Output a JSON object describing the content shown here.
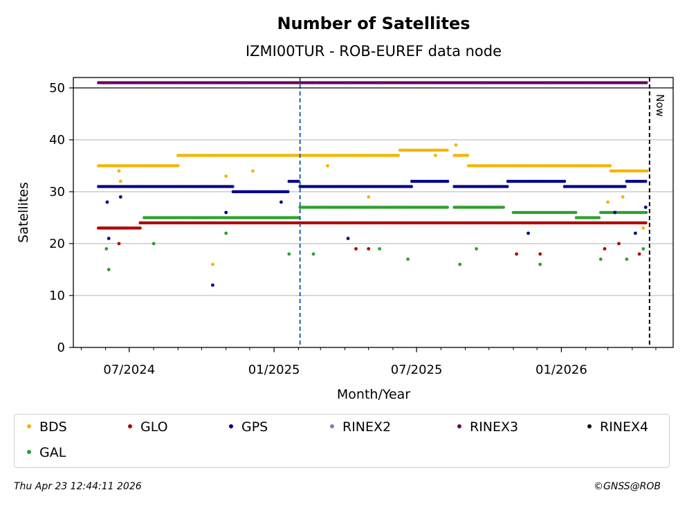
{
  "chart_data": {
    "type": "scatter",
    "title": "Number of Satellites",
    "subtitle": "IZMI00TUR - ROB-EUREF data node",
    "xlabel": "Month/Year",
    "ylabel": "Satellites",
    "ylim": [
      0,
      52
    ],
    "xlim": [
      "2024-04-21",
      "2026-05-23"
    ],
    "yticks": [
      0,
      10,
      20,
      30,
      40,
      50
    ],
    "xtick_labels": [
      {
        "date": "2024-07-01",
        "label": "07/2024"
      },
      {
        "date": "2025-01-01",
        "label": "01/2025"
      },
      {
        "date": "2025-07-01",
        "label": "07/2025"
      },
      {
        "date": "2026-01-01",
        "label": "01/2026"
      }
    ],
    "grid": "y",
    "vertical_lines": [
      {
        "date": "2025-02-03",
        "style": "dashed",
        "color": "#1f5fa8"
      },
      {
        "date": "2026-04-23",
        "style": "dashed",
        "color": "#000000",
        "label": "Now"
      }
    ],
    "segments": [
      {
        "series": "BDS",
        "start": "2024-05-23",
        "end": "2024-09-01",
        "value": 35
      },
      {
        "series": "BDS",
        "start": "2024-09-01",
        "end": "2025-02-03",
        "value": 37
      },
      {
        "series": "BDS",
        "start": "2025-02-03",
        "end": "2025-06-10",
        "value": 37
      },
      {
        "series": "BDS",
        "start": "2025-06-10",
        "end": "2025-08-10",
        "value": 38
      },
      {
        "series": "BDS",
        "start": "2025-08-18",
        "end": "2025-09-05",
        "value": 37
      },
      {
        "series": "BDS",
        "start": "2025-09-05",
        "end": "2026-03-05",
        "value": 35
      },
      {
        "series": "BDS",
        "start": "2026-03-05",
        "end": "2026-04-20",
        "value": 34
      },
      {
        "series": "GPS",
        "start": "2024-05-23",
        "end": "2024-11-10",
        "value": 31
      },
      {
        "series": "GPS",
        "start": "2024-11-10",
        "end": "2025-01-20",
        "value": 30
      },
      {
        "series": "GPS",
        "start": "2025-01-20",
        "end": "2025-02-03",
        "value": 32
      },
      {
        "series": "GPS",
        "start": "2025-02-03",
        "end": "2025-06-25",
        "value": 31
      },
      {
        "series": "GPS",
        "start": "2025-06-25",
        "end": "2025-08-10",
        "value": 32
      },
      {
        "series": "GPS",
        "start": "2025-08-18",
        "end": "2025-10-25",
        "value": 31
      },
      {
        "series": "GPS",
        "start": "2025-10-25",
        "end": "2026-01-05",
        "value": 32
      },
      {
        "series": "GPS",
        "start": "2026-01-05",
        "end": "2026-03-25",
        "value": 31
      },
      {
        "series": "GPS",
        "start": "2026-03-25",
        "end": "2026-04-20",
        "value": 32
      },
      {
        "series": "GAL",
        "start": "2024-05-23",
        "end": "2024-06-30",
        "value": 23
      },
      {
        "series": "GAL",
        "start": "2024-07-20",
        "end": "2025-02-03",
        "value": 25
      },
      {
        "series": "GAL",
        "start": "2025-02-03",
        "end": "2025-08-10",
        "value": 27
      },
      {
        "series": "GAL",
        "start": "2025-08-18",
        "end": "2025-10-20",
        "value": 27
      },
      {
        "series": "GAL",
        "start": "2025-11-01",
        "end": "2026-01-20",
        "value": 26
      },
      {
        "series": "GAL",
        "start": "2026-01-20",
        "end": "2026-02-20",
        "value": 25
      },
      {
        "series": "GAL",
        "start": "2026-02-20",
        "end": "2026-04-20",
        "value": 26
      },
      {
        "series": "GLO",
        "start": "2024-05-23",
        "end": "2024-07-15",
        "value": 23
      },
      {
        "series": "GLO",
        "start": "2024-07-15",
        "end": "2025-02-03",
        "value": 24
      },
      {
        "series": "GLO",
        "start": "2025-02-03",
        "end": "2026-04-20",
        "value": 24
      },
      {
        "series": "RINEX3",
        "start": "2024-05-23",
        "end": "2026-04-20",
        "value": 51
      }
    ],
    "series": [
      {
        "name": "BDS",
        "color": "#f5b400"
      },
      {
        "name": "GLO",
        "color": "#b30000"
      },
      {
        "name": "GPS",
        "color": "#00008b"
      },
      {
        "name": "RINEX2",
        "color": "#8878c0"
      },
      {
        "name": "RINEX3",
        "color": "#6a0064"
      },
      {
        "name": "RINEX4",
        "color": "#1a0014"
      },
      {
        "name": "GAL",
        "color": "#2ca02c"
      }
    ],
    "outliers": [
      {
        "series": "BDS",
        "date": "2024-10-15",
        "value": 16
      },
      {
        "series": "BDS",
        "date": "2024-06-18",
        "value": 34
      },
      {
        "series": "BDS",
        "date": "2024-06-20",
        "value": 32
      },
      {
        "series": "BDS",
        "date": "2024-11-01",
        "value": 33
      },
      {
        "series": "BDS",
        "date": "2024-12-05",
        "value": 34
      },
      {
        "series": "BDS",
        "date": "2025-03-10",
        "value": 35
      },
      {
        "series": "BDS",
        "date": "2025-05-01",
        "value": 29
      },
      {
        "series": "BDS",
        "date": "2025-08-20",
        "value": 39
      },
      {
        "series": "BDS",
        "date": "2025-07-25",
        "value": 37
      },
      {
        "series": "BDS",
        "date": "2026-03-01",
        "value": 28
      },
      {
        "series": "BDS",
        "date": "2026-03-20",
        "value": 29
      },
      {
        "series": "BDS",
        "date": "2026-04-15",
        "value": 23
      },
      {
        "series": "GPS",
        "date": "2024-10-15",
        "value": 12
      },
      {
        "series": "GPS",
        "date": "2024-06-03",
        "value": 28
      },
      {
        "series": "GPS",
        "date": "2024-06-05",
        "value": 21
      },
      {
        "series": "GPS",
        "date": "2024-06-20",
        "value": 29
      },
      {
        "series": "GPS",
        "date": "2024-11-01",
        "value": 26
      },
      {
        "series": "GPS",
        "date": "2025-01-10",
        "value": 28
      },
      {
        "series": "GPS",
        "date": "2025-04-05",
        "value": 21
      },
      {
        "series": "GPS",
        "date": "2025-11-20",
        "value": 22
      },
      {
        "series": "GPS",
        "date": "2026-03-10",
        "value": 26
      },
      {
        "series": "GPS",
        "date": "2026-04-05",
        "value": 22
      },
      {
        "series": "GPS",
        "date": "2026-04-18",
        "value": 27
      },
      {
        "series": "GAL",
        "date": "2024-06-05",
        "value": 15
      },
      {
        "series": "GAL",
        "date": "2024-06-02",
        "value": 19
      },
      {
        "series": "GAL",
        "date": "2024-08-01",
        "value": 20
      },
      {
        "series": "GAL",
        "date": "2024-11-01",
        "value": 22
      },
      {
        "series": "GAL",
        "date": "2025-01-20",
        "value": 18
      },
      {
        "series": "GAL",
        "date": "2025-02-20",
        "value": 18
      },
      {
        "series": "GAL",
        "date": "2025-05-15",
        "value": 19
      },
      {
        "series": "GAL",
        "date": "2025-06-20",
        "value": 17
      },
      {
        "series": "GAL",
        "date": "2025-08-25",
        "value": 16
      },
      {
        "series": "GAL",
        "date": "2025-09-15",
        "value": 19
      },
      {
        "series": "GAL",
        "date": "2025-12-05",
        "value": 16
      },
      {
        "series": "GAL",
        "date": "2026-02-20",
        "value": 17
      },
      {
        "series": "GAL",
        "date": "2026-03-25",
        "value": 17
      },
      {
        "series": "GAL",
        "date": "2026-04-15",
        "value": 19
      },
      {
        "series": "GLO",
        "date": "2024-06-18",
        "value": 20
      },
      {
        "series": "GLO",
        "date": "2025-04-15",
        "value": 19
      },
      {
        "series": "GLO",
        "date": "2025-05-01",
        "value": 19
      },
      {
        "series": "GLO",
        "date": "2025-11-05",
        "value": 18
      },
      {
        "series": "GLO",
        "date": "2025-12-05",
        "value": 18
      },
      {
        "series": "GLO",
        "date": "2026-02-25",
        "value": 19
      },
      {
        "series": "GLO",
        "date": "2026-03-15",
        "value": 20
      },
      {
        "series": "GLO",
        "date": "2026-04-10",
        "value": 18
      }
    ]
  },
  "legend": {
    "items": [
      {
        "label": "BDS",
        "color": "#f5b400"
      },
      {
        "label": "GLO",
        "color": "#b30000"
      },
      {
        "label": "GPS",
        "color": "#00008b"
      },
      {
        "label": "RINEX2",
        "color": "#8878c0"
      },
      {
        "label": "RINEX3",
        "color": "#6a0064"
      },
      {
        "label": "RINEX4",
        "color": "#1a0014"
      },
      {
        "label": "GAL",
        "color": "#2ca02c"
      }
    ]
  },
  "footer": {
    "timestamp": "Thu Apr 23 12:44:11 2026",
    "credit": "©GNSS@ROB"
  }
}
